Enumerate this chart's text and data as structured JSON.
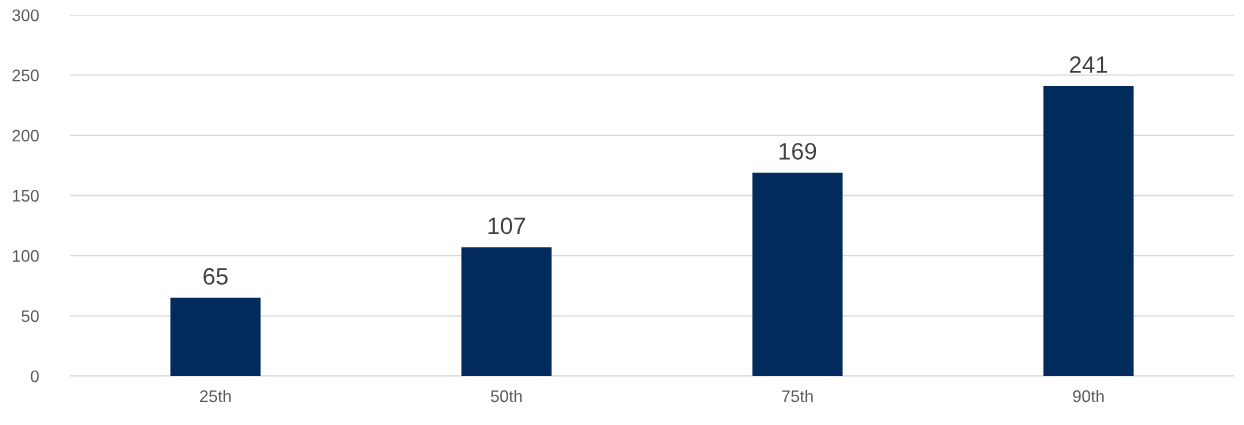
{
  "chart_data": {
    "type": "bar",
    "categories": [
      "25th",
      "50th",
      "75th",
      "90th"
    ],
    "values": [
      65,
      107,
      169,
      241
    ],
    "color": "#002b5c",
    "ylim": [
      0,
      300
    ],
    "yticks": [
      0,
      50,
      100,
      150,
      200,
      250,
      300
    ],
    "grid": "y",
    "data_labels": true,
    "legend": false
  }
}
